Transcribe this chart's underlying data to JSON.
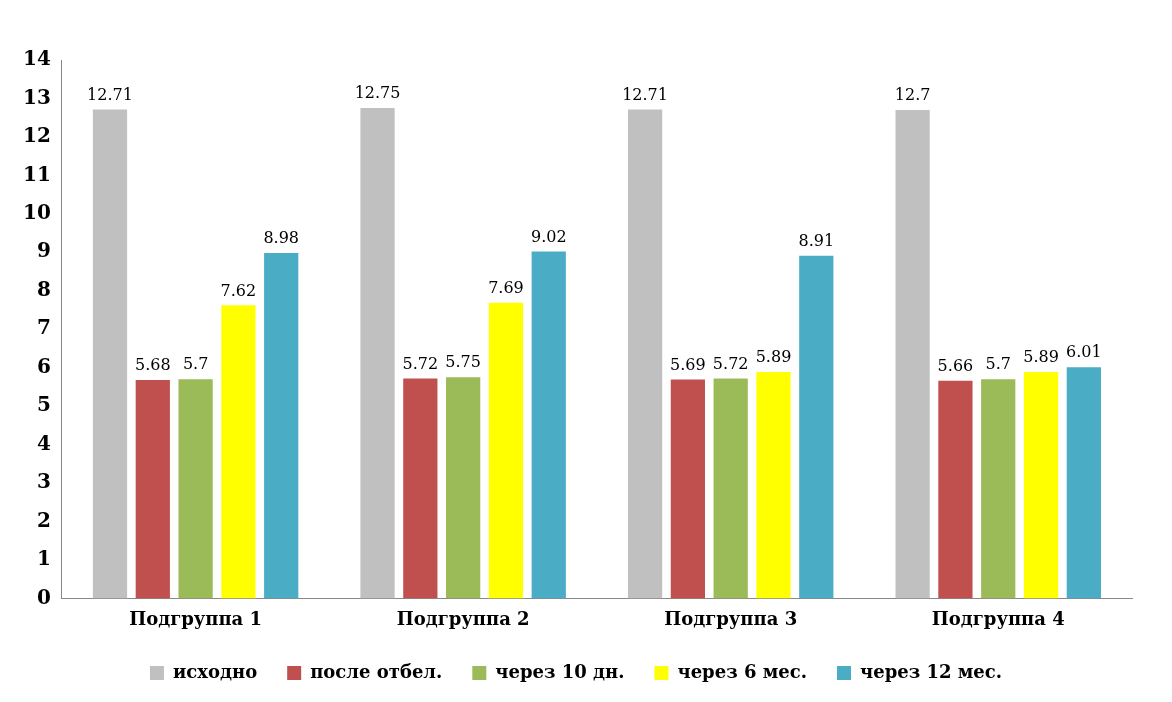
{
  "chart_data": {
    "type": "bar",
    "categories": [
      "Подгруппа 1",
      "Подгруппа 2",
      "Подгруппа 3",
      "Подгруппа 4"
    ],
    "series": [
      {
        "name": "исходно",
        "color": "#c0c0c0",
        "values": [
          12.71,
          12.75,
          12.71,
          12.7
        ]
      },
      {
        "name": "после отбел.",
        "color": "#c0504d",
        "values": [
          5.68,
          5.72,
          5.69,
          5.66
        ]
      },
      {
        "name": "через 10 дн.",
        "color": "#9bbb59",
        "values": [
          5.7,
          5.75,
          5.72,
          5.7
        ]
      },
      {
        "name": "через 6 мес.",
        "color": "#ffff00",
        "values": [
          7.62,
          7.69,
          5.89,
          5.89
        ]
      },
      {
        "name": "через 12 мес.",
        "color": "#4bacc6",
        "values": [
          8.98,
          9.02,
          8.91,
          6.01
        ]
      }
    ],
    "ylim": [
      0,
      14
    ],
    "yticks": [
      0,
      1,
      2,
      3,
      4,
      5,
      6,
      7,
      8,
      9,
      10,
      11,
      12,
      13,
      14
    ],
    "grid": false,
    "legend": "bottom",
    "data_labels": true
  }
}
